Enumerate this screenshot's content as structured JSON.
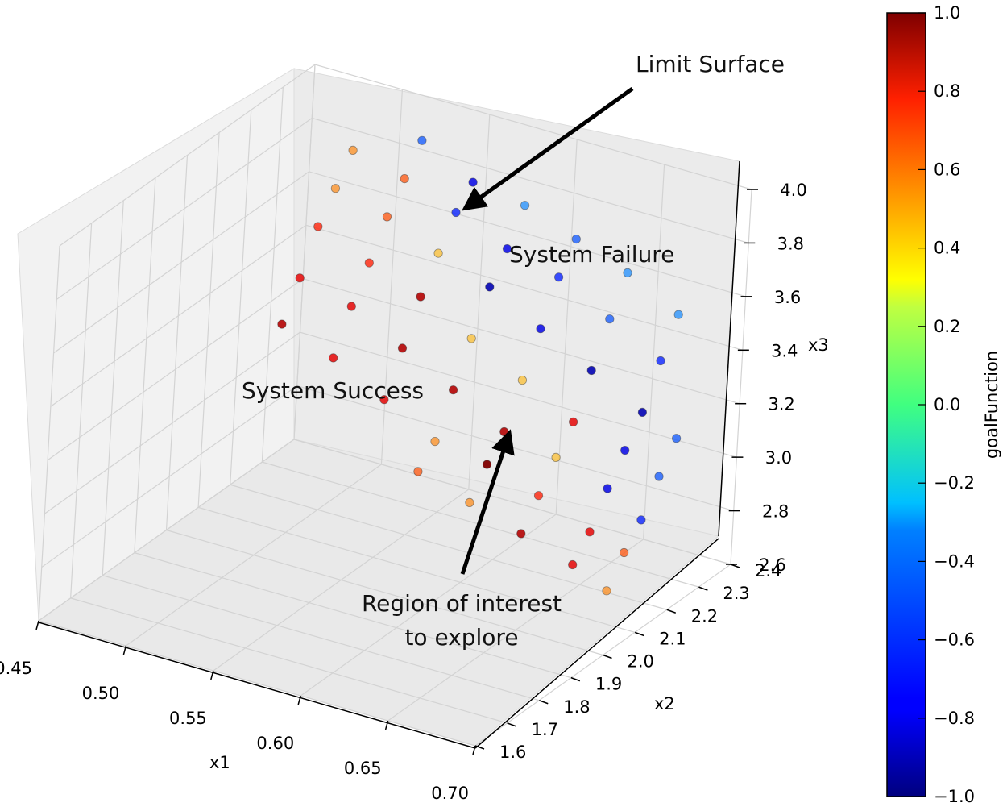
{
  "chart_data": {
    "type": "scatter",
    "projection": "3d",
    "x_axis": {
      "label": "x1",
      "range": [
        0.45,
        0.7
      ],
      "ticks": [
        "0.45",
        "0.50",
        "0.55",
        "0.60",
        "0.65",
        "0.70"
      ]
    },
    "y_axis": {
      "label": "x2",
      "range": [
        1.6,
        2.4
      ],
      "ticks": [
        "1.6",
        "1.7",
        "1.8",
        "1.9",
        "2.0",
        "2.1",
        "2.2",
        "2.3",
        "2.4"
      ]
    },
    "z_axis": {
      "label": "x3",
      "range": [
        2.6,
        4.0
      ],
      "ticks": [
        "2.6",
        "2.8",
        "3.0",
        "3.2",
        "3.4",
        "3.6",
        "3.8",
        "4.0"
      ]
    },
    "colorbar": {
      "label": "goalFunction",
      "colormap": "jet",
      "range": [
        -1.0,
        1.0
      ],
      "ticks": [
        "1.0",
        "0.8",
        "0.6",
        "0.4",
        "0.2",
        "0.0",
        "−0.2",
        "−0.4",
        "−0.6",
        "−0.8",
        "−1.0"
      ]
    },
    "grid": true,
    "annotations": {
      "limit_surface": "Limit Surface",
      "system_failure": "System Failure",
      "system_success": "System Success",
      "region_line1": "Region of interest",
      "region_line2": "to explore"
    },
    "points": [
      {
        "x1": 0.5,
        "x2": 2.25,
        "x3": 3.9,
        "g": 0.5
      },
      {
        "x1": 0.53,
        "x2": 2.3,
        "x3": 3.95,
        "g": -0.6
      },
      {
        "x1": 0.5,
        "x2": 2.2,
        "x3": 3.8,
        "g": 0.5
      },
      {
        "x1": 0.53,
        "x2": 2.25,
        "x3": 3.85,
        "g": 0.6
      },
      {
        "x1": 0.56,
        "x2": 2.3,
        "x3": 3.85,
        "g": -0.8
      },
      {
        "x1": 0.5,
        "x2": 2.15,
        "x3": 3.7,
        "g": 0.7
      },
      {
        "x1": 0.53,
        "x2": 2.2,
        "x3": 3.75,
        "g": 0.6
      },
      {
        "x1": 0.56,
        "x2": 2.25,
        "x3": 3.78,
        "g": -0.7
      },
      {
        "x1": 0.59,
        "x2": 2.3,
        "x3": 3.82,
        "g": -0.5
      },
      {
        "x1": 0.5,
        "x2": 2.1,
        "x3": 3.55,
        "g": 0.8
      },
      {
        "x1": 0.53,
        "x2": 2.15,
        "x3": 3.62,
        "g": 0.7
      },
      {
        "x1": 0.56,
        "x2": 2.2,
        "x3": 3.67,
        "g": 0.4
      },
      {
        "x1": 0.59,
        "x2": 2.25,
        "x3": 3.7,
        "g": -0.8
      },
      {
        "x1": 0.62,
        "x2": 2.3,
        "x3": 3.75,
        "g": -0.6
      },
      {
        "x1": 0.5,
        "x2": 2.05,
        "x3": 3.42,
        "g": 0.9
      },
      {
        "x1": 0.53,
        "x2": 2.1,
        "x3": 3.5,
        "g": 0.8
      },
      {
        "x1": 0.56,
        "x2": 2.15,
        "x3": 3.55,
        "g": 0.9
      },
      {
        "x1": 0.59,
        "x2": 2.2,
        "x3": 3.6,
        "g": -0.9
      },
      {
        "x1": 0.62,
        "x2": 2.25,
        "x3": 3.65,
        "g": -0.7
      },
      {
        "x1": 0.65,
        "x2": 2.3,
        "x3": 3.68,
        "g": -0.5
      },
      {
        "x1": 0.53,
        "x2": 2.05,
        "x3": 3.35,
        "g": 0.8
      },
      {
        "x1": 0.56,
        "x2": 2.1,
        "x3": 3.4,
        "g": 0.9
      },
      {
        "x1": 0.59,
        "x2": 2.15,
        "x3": 3.45,
        "g": 0.4
      },
      {
        "x1": 0.62,
        "x2": 2.2,
        "x3": 3.5,
        "g": -0.8
      },
      {
        "x1": 0.65,
        "x2": 2.25,
        "x3": 3.55,
        "g": -0.6
      },
      {
        "x1": 0.68,
        "x2": 2.3,
        "x3": 3.58,
        "g": -0.5
      },
      {
        "x1": 0.56,
        "x2": 2.05,
        "x3": 3.25,
        "g": 0.8
      },
      {
        "x1": 0.59,
        "x2": 2.1,
        "x3": 3.3,
        "g": 0.9
      },
      {
        "x1": 0.62,
        "x2": 2.15,
        "x3": 3.35,
        "g": 0.4
      },
      {
        "x1": 0.65,
        "x2": 2.2,
        "x3": 3.4,
        "g": -0.9
      },
      {
        "x1": 0.68,
        "x2": 2.25,
        "x3": 3.45,
        "g": -0.7
      },
      {
        "x1": 0.59,
        "x2": 2.05,
        "x3": 3.15,
        "g": 0.5
      },
      {
        "x1": 0.62,
        "x2": 2.1,
        "x3": 3.2,
        "g": 0.9
      },
      {
        "x1": 0.65,
        "x2": 2.15,
        "x3": 3.25,
        "g": 0.8
      },
      {
        "x1": 0.68,
        "x2": 2.2,
        "x3": 3.3,
        "g": -0.9
      },
      {
        "x1": 0.59,
        "x2": 2.0,
        "x3": 3.08,
        "g": 0.6
      },
      {
        "x1": 0.62,
        "x2": 2.05,
        "x3": 3.12,
        "g": 1.0
      },
      {
        "x1": 0.65,
        "x2": 2.1,
        "x3": 3.16,
        "g": 0.4
      },
      {
        "x1": 0.68,
        "x2": 2.15,
        "x3": 3.2,
        "g": -0.8
      },
      {
        "x1": 0.7,
        "x2": 2.2,
        "x3": 3.24,
        "g": -0.6
      },
      {
        "x1": 0.62,
        "x2": 2.0,
        "x3": 3.02,
        "g": 0.5
      },
      {
        "x1": 0.65,
        "x2": 2.05,
        "x3": 3.06,
        "g": 0.7
      },
      {
        "x1": 0.68,
        "x2": 2.1,
        "x3": 3.1,
        "g": -0.8
      },
      {
        "x1": 0.7,
        "x2": 2.15,
        "x3": 3.14,
        "g": -0.6
      },
      {
        "x1": 0.65,
        "x2": 2.0,
        "x3": 2.96,
        "g": 0.9
      },
      {
        "x1": 0.68,
        "x2": 2.05,
        "x3": 2.98,
        "g": 0.8
      },
      {
        "x1": 0.7,
        "x2": 2.1,
        "x3": 3.02,
        "g": -0.7
      },
      {
        "x1": 0.68,
        "x2": 2.0,
        "x3": 2.9,
        "g": 0.8
      },
      {
        "x1": 0.7,
        "x2": 2.05,
        "x3": 2.94,
        "g": 0.6
      },
      {
        "x1": 0.7,
        "x2": 2.0,
        "x3": 2.84,
        "g": 0.5
      }
    ]
  }
}
